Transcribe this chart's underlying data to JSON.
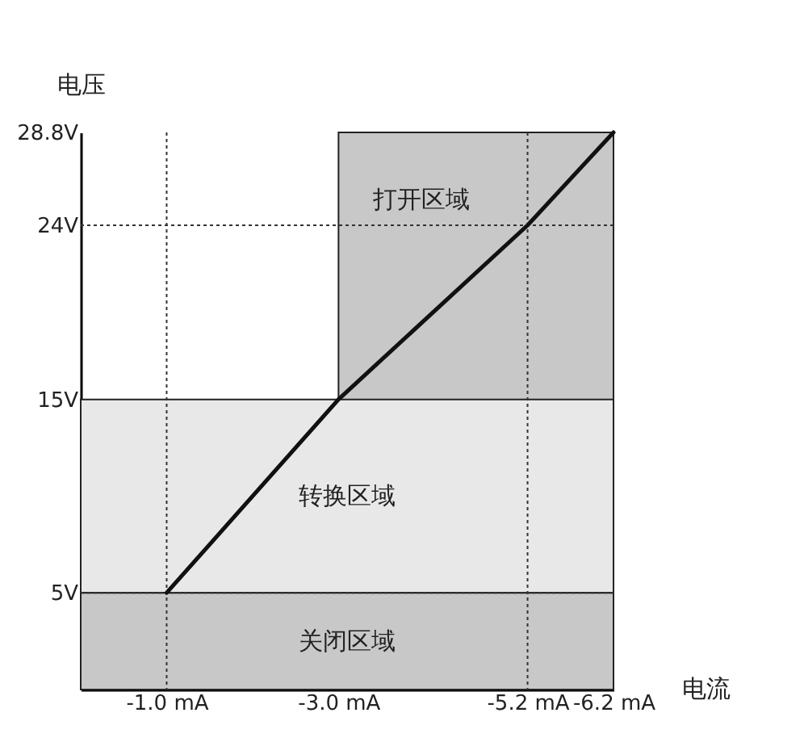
{
  "chart_data": {
    "type": "line",
    "xlabel": "电流",
    "ylabel": "电压",
    "x": [
      -1.0,
      -3.0,
      -5.2,
      -6.2
    ],
    "series": [
      {
        "color": "#111111",
        "values": [
          5,
          15,
          24,
          28.8
        ]
      }
    ],
    "xlim": [
      0,
      -6.2
    ],
    "ylim": [
      0,
      28.8
    ],
    "xticks": [
      {
        "value": -1.0,
        "label": "-1.0 mA"
      },
      {
        "value": -3.0,
        "label": "-3.0 mA"
      },
      {
        "value": -5.2,
        "label": "-5.2 mA"
      },
      {
        "value": -6.2,
        "label": "-6.2 mA"
      }
    ],
    "yticks": [
      {
        "value": 5,
        "label": "5V"
      },
      {
        "value": 15,
        "label": "15V"
      },
      {
        "value": 24,
        "label": "24V"
      },
      {
        "value": 28.8,
        "label": "28.8V"
      }
    ],
    "bands": [
      {
        "axis": "x",
        "from": -3.0,
        "to": -6.2,
        "label": "打开区域",
        "color": "#c8c8c8"
      },
      {
        "axis": "y",
        "from": 5,
        "to": 15,
        "label": "转换区域",
        "color": "#e8e8e8"
      },
      {
        "axis": "y",
        "from": 0,
        "to": 5,
        "label": "关闭区域",
        "color": "#c8c8c8"
      }
    ],
    "ref_lines": [
      {
        "axis": "y",
        "value": 5,
        "line_style": "dotted"
      },
      {
        "axis": "y",
        "value": 24,
        "line_style": "dotted"
      },
      {
        "axis": "x",
        "value": -1.0,
        "line_style": "dotted"
      },
      {
        "axis": "x",
        "value": -5.2,
        "line_style": "dotted"
      }
    ],
    "grid": false,
    "marker": "none",
    "line_style": "solid"
  }
}
